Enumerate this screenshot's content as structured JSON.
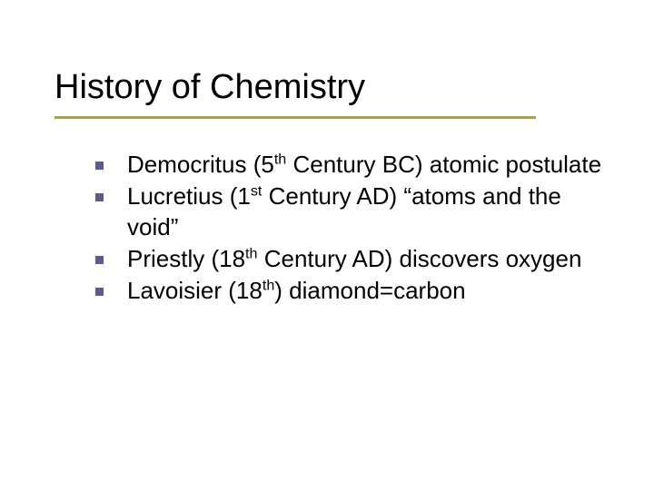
{
  "slide": {
    "title": "History of Chemistry",
    "title_color": "#000000",
    "title_fontsize": 38,
    "underline_color": "#a3a35c",
    "bullet_color": "#5b5b8f",
    "body_fontsize": 26,
    "text_color": "#000000",
    "background_color": "#ffffff",
    "items": [
      {
        "prefix": "Democritus (5",
        "sup": "th",
        "suffix": " Century BC) atomic postulate"
      },
      {
        "prefix": "Lucretius (1",
        "sup": "st",
        "suffix": " Century AD) “atoms and the void”"
      },
      {
        "prefix": "Priestly (18",
        "sup": "th",
        "suffix": " Century AD) discovers oxygen"
      },
      {
        "prefix": "Lavoisier (18",
        "sup": "th",
        "suffix": ") diamond=carbon"
      }
    ]
  }
}
